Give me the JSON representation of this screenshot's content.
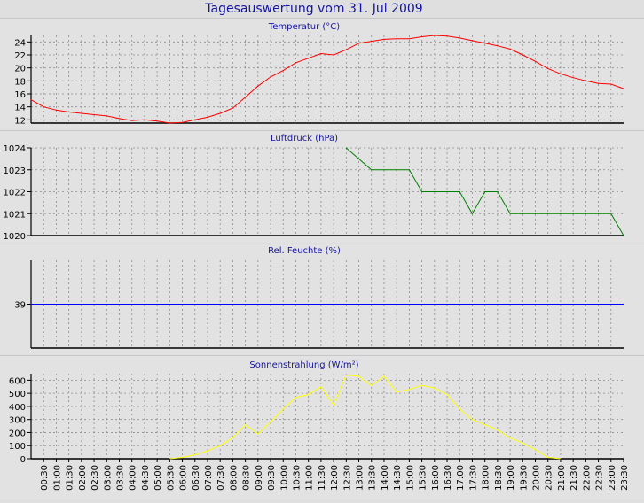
{
  "page": {
    "title": "Tagesauswertung vom 31. Jul 2009",
    "title_color": "#1414a0",
    "panel_title_color": "#1414a0",
    "bg_color": "#dfdfdf"
  },
  "time_labels": [
    "00:30",
    "01:00",
    "01:30",
    "02:00",
    "02:30",
    "03:00",
    "03:30",
    "04:00",
    "04:30",
    "05:00",
    "05:30",
    "06:00",
    "06:30",
    "07:00",
    "07:30",
    "08:00",
    "08:30",
    "09:00",
    "09:30",
    "10:00",
    "10:30",
    "11:00",
    "11:30",
    "12:00",
    "12:30",
    "13:00",
    "13:30",
    "14:00",
    "14:30",
    "15:00",
    "15:30",
    "16:00",
    "16:30",
    "17:00",
    "17:30",
    "18:00",
    "18:30",
    "19:00",
    "19:30",
    "20:00",
    "20:30",
    "21:00",
    "21:30",
    "22:00",
    "22:30",
    "23:00",
    "23:30"
  ],
  "chart_data": [
    {
      "type": "line",
      "title": "Temperatur (°C)",
      "color": "#ff0000",
      "xlim": [
        0,
        47
      ],
      "ylim": [
        11.5,
        25
      ],
      "yticks": [
        12,
        14,
        16,
        18,
        20,
        22,
        24
      ],
      "grid": true,
      "x": [
        0,
        1,
        2,
        3,
        4,
        5,
        6,
        7,
        8,
        9,
        10,
        11,
        12,
        13,
        14,
        15,
        16,
        17,
        18,
        19,
        20,
        21,
        22,
        23,
        24,
        25,
        26,
        27,
        28,
        29,
        30,
        31,
        32,
        33,
        34,
        35,
        36,
        37,
        38,
        39,
        40,
        41,
        42,
        43,
        44,
        45,
        46,
        47
      ],
      "values": [
        15.1,
        14.0,
        13.5,
        13.2,
        13.0,
        12.8,
        12.6,
        12.2,
        11.9,
        12.0,
        11.8,
        11.5,
        11.6,
        12.0,
        12.4,
        13.0,
        13.8,
        15.5,
        17.2,
        18.6,
        19.6,
        20.8,
        21.5,
        22.2,
        22.0,
        22.8,
        23.8,
        24.1,
        24.4,
        24.5,
        24.5,
        24.8,
        25.0,
        24.9,
        24.6,
        24.2,
        23.8,
        23.4,
        22.9,
        22.0,
        21.0,
        19.9,
        19.1,
        18.5,
        18.0,
        17.6,
        17.5,
        16.8
      ]
    },
    {
      "type": "line",
      "title": "Luftdruck (hPa)",
      "color": "#008000",
      "xlim": [
        0,
        47
      ],
      "ylim": [
        1020,
        1024
      ],
      "yticks": [
        1020,
        1021,
        1022,
        1023,
        1024
      ],
      "grid": true,
      "x": [
        25,
        26,
        27,
        28,
        29,
        30,
        31,
        32,
        33,
        34,
        35,
        36,
        37,
        38,
        39,
        40,
        41,
        42,
        43,
        44,
        45,
        46,
        47
      ],
      "values": [
        1024,
        1023.5,
        1023,
        1023,
        1023,
        1023,
        1022,
        1022,
        1022,
        1022,
        1021,
        1022,
        1022,
        1021,
        1021,
        1021,
        1021,
        1021,
        1021,
        1021,
        1021,
        1021,
        1020
      ]
    },
    {
      "type": "line",
      "title": "Rel. Feuchte (%)",
      "color": "#0000ff",
      "xlim": [
        0,
        47
      ],
      "ylim": [
        30,
        48
      ],
      "yticks": [
        39
      ],
      "grid": true,
      "x": [
        0,
        47
      ],
      "values": [
        39,
        39
      ]
    },
    {
      "type": "line",
      "title": "Sonnenstrahlung (W/m²)",
      "color": "#ffff00",
      "xlim": [
        0,
        47
      ],
      "ylim": [
        0,
        650
      ],
      "yticks": [
        0,
        100,
        200,
        300,
        400,
        500,
        600
      ],
      "grid": true,
      "x": [
        11,
        12,
        13,
        14,
        15,
        16,
        17,
        18,
        19,
        20,
        21,
        22,
        23,
        24,
        25,
        26,
        27,
        28,
        29,
        30,
        31,
        32,
        33,
        34,
        35,
        36,
        37,
        38,
        39,
        40,
        41,
        42
      ],
      "values": [
        0,
        10,
        30,
        60,
        100,
        160,
        260,
        190,
        280,
        380,
        470,
        490,
        550,
        410,
        640,
        630,
        560,
        630,
        510,
        530,
        560,
        540,
        490,
        380,
        300,
        260,
        220,
        160,
        120,
        70,
        10,
        0
      ]
    }
  ]
}
